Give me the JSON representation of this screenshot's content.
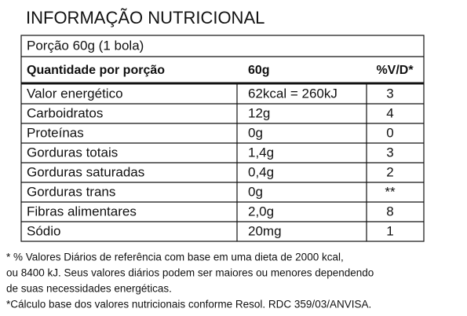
{
  "header": {
    "title": "INFORMAÇÃO NUTRICIONAL"
  },
  "table": {
    "portion": "Porção 60g (1 bola)",
    "columns": [
      "Quantidade por porção",
      "60g",
      "%V/D*"
    ],
    "rows": [
      [
        "Valor energético",
        "62kcal = 260kJ",
        "3"
      ],
      [
        "Carboidratos",
        "12g",
        "4"
      ],
      [
        "Proteínas",
        "0g",
        "0"
      ],
      [
        "Gorduras totais",
        "1,4g",
        "3"
      ],
      [
        "Gorduras saturadas",
        "0,4g",
        "2"
      ],
      [
        "Gorduras trans",
        "0g",
        "**"
      ],
      [
        "Fibras alimentares",
        "2,0g",
        "8"
      ],
      [
        "Sódio",
        "20mg",
        "1"
      ]
    ]
  },
  "footnotes": [
    "* % Valores Diários de referência com base em uma dieta de 2000 kcal,",
    "ou 8400 kJ. Seus valores diários podem ser maiores ou menores dependendo",
    "de suas necessidades energéticas.",
    "*Cálculo base dos valores nutricionais conforme Resol. RDC 359/03/ANVISA."
  ]
}
